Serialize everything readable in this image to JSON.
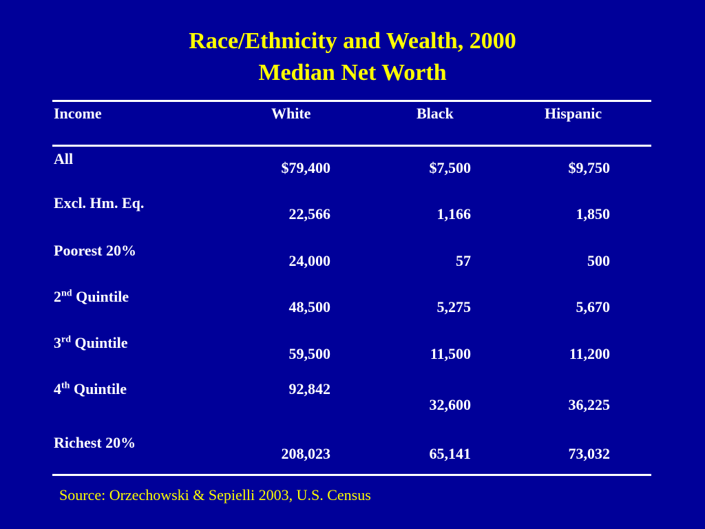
{
  "title": {
    "line1": "Race/Ethnicity and Wealth, 2000",
    "line2": "Median Net Worth"
  },
  "table": {
    "headers": {
      "income": "Income",
      "white": "White",
      "black": "Black",
      "hispanic": "Hispanic"
    },
    "rows": [
      {
        "label": {
          "num": "All",
          "sup": "",
          "rest": ""
        },
        "white": "$79,400",
        "black": "$7,500",
        "hispanic": "$9,750"
      },
      {
        "label": {
          "num": "Excl. Hm. Eq.",
          "sup": "",
          "rest": ""
        },
        "white": "22,566",
        "black": "1,166",
        "hispanic": "1,850"
      },
      {
        "label": {
          "num": "Poorest 20%",
          "sup": "",
          "rest": ""
        },
        "white": "24,000",
        "black": "57",
        "hispanic": "500"
      },
      {
        "label": {
          "num": "2",
          "sup": "nd",
          "rest": " Quintile"
        },
        "white": "48,500",
        "black": "5,275",
        "hispanic": "5,670"
      },
      {
        "label": {
          "num": "3",
          "sup": "rd",
          "rest": " Quintile"
        },
        "white": "59,500",
        "black": "11,500",
        "hispanic": "11,200"
      },
      {
        "label": {
          "num": "4",
          "sup": "th",
          "rest": " Quintile"
        },
        "white": "92,842",
        "black": "32,600",
        "hispanic": "36,225"
      },
      {
        "label": {
          "num": "Richest 20%",
          "sup": "",
          "rest": ""
        },
        "white": "208,023",
        "black": "65,141",
        "hispanic": "73,032"
      }
    ]
  },
  "source": "Source: Orzechowski & Sepielli 2003, U.S. Census",
  "colors": {
    "background": "#000099",
    "title": "#ffff00",
    "text": "#ffffff",
    "source": "#ffff00"
  }
}
